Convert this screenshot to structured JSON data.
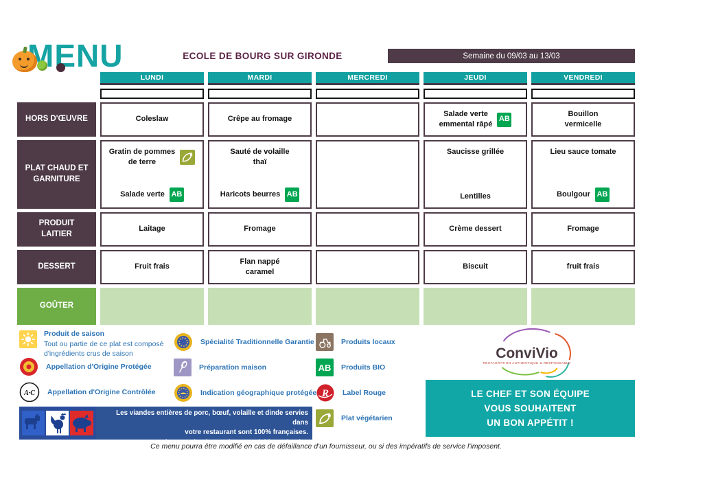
{
  "logo": {
    "text": "MENU"
  },
  "header": {
    "school_title": "ECOLE DE BOURG SUR GIRONDE",
    "week_banner": "Semaine du 09/03 au 13/03"
  },
  "days": [
    "LUNDI",
    "MARDI",
    "MERCREDI",
    "JEUDI",
    "VENDREDI"
  ],
  "sections": [
    {
      "label": "HORS D'ŒUVRE",
      "kind": "normal",
      "cells": [
        {
          "items": [
            {
              "lines": [
                "Coleslaw"
              ],
              "icon": null
            }
          ]
        },
        {
          "items": [
            {
              "lines": [
                "Crêpe au fromage"
              ],
              "icon": null
            }
          ]
        },
        {
          "items": []
        },
        {
          "items": [
            {
              "lines": [
                "Salade verte",
                "emmental râpé"
              ],
              "icon": "bio"
            }
          ]
        },
        {
          "items": [
            {
              "lines": [
                "Bouillon",
                "vermicelle"
              ],
              "icon": null
            }
          ]
        }
      ]
    },
    {
      "label": "PLAT CHAUD ET GARNITURE",
      "kind": "normal",
      "cells": [
        {
          "items": [
            {
              "lines": [
                "Gratin de pommes",
                "de terre"
              ],
              "icon": "veg"
            },
            {
              "lines": [
                "Salade verte"
              ],
              "icon": "bio"
            }
          ]
        },
        {
          "items": [
            {
              "lines": [
                "Sauté de volaille",
                "thaï"
              ],
              "icon": null
            },
            {
              "lines": [
                "Haricots beurres"
              ],
              "icon": "bio"
            }
          ]
        },
        {
          "items": []
        },
        {
          "items": [
            {
              "lines": [
                "Saucisse grillée"
              ],
              "icon": null
            },
            {
              "lines": [
                "Lentilles"
              ],
              "icon": null
            }
          ]
        },
        {
          "items": [
            {
              "lines": [
                "Lieu sauce tomate"
              ],
              "icon": null
            },
            {
              "lines": [
                "Boulgour"
              ],
              "icon": "bio"
            }
          ]
        }
      ]
    },
    {
      "label": "PRODUIT LAITIER",
      "kind": "normal",
      "cells": [
        {
          "items": [
            {
              "lines": [
                "Laitage"
              ],
              "icon": null
            }
          ]
        },
        {
          "items": [
            {
              "lines": [
                "Fromage"
              ],
              "icon": null
            }
          ]
        },
        {
          "items": []
        },
        {
          "items": [
            {
              "lines": [
                "Crème dessert"
              ],
              "icon": null
            }
          ]
        },
        {
          "items": [
            {
              "lines": [
                "Fromage"
              ],
              "icon": null
            }
          ]
        }
      ]
    },
    {
      "label": "DESSERT",
      "kind": "normal",
      "cells": [
        {
          "items": [
            {
              "lines": [
                "Fruit frais"
              ],
              "icon": null
            }
          ]
        },
        {
          "items": [
            {
              "lines": [
                "Flan nappé",
                "caramel"
              ],
              "icon": null
            }
          ]
        },
        {
          "items": []
        },
        {
          "items": [
            {
              "lines": [
                "Biscuit"
              ],
              "icon": null
            }
          ]
        },
        {
          "items": [
            {
              "lines": [
                "fruit frais"
              ],
              "icon": null
            }
          ]
        }
      ]
    },
    {
      "label": "GOÛTER",
      "kind": "gouter",
      "cells": [
        {
          "items": []
        },
        {
          "items": []
        },
        {
          "items": []
        },
        {
          "items": []
        },
        {
          "items": []
        }
      ]
    }
  ],
  "legend": {
    "season": {
      "title": "Produit de saison",
      "desc_line1": "Tout ou partie de ce plat est  composé",
      "desc_line2": "d'ingrédients crus de saison"
    },
    "items_col1": [
      {
        "icon": "aop",
        "label": "Appellation d'Origine Protégée"
      },
      {
        "icon": "aoc",
        "label": "Appellation d'Origine Contrôlée"
      }
    ],
    "items_col2": [
      {
        "icon": "stg",
        "label": "Spécialité Traditionnelle Garantie"
      },
      {
        "icon": "maison",
        "label": "Préparation maison"
      },
      {
        "icon": "igp",
        "label": "Indication géographique protégée"
      }
    ],
    "items_col3": [
      {
        "icon": "local",
        "label": "Produits locaux"
      },
      {
        "icon": "bio",
        "label": "Produits BIO"
      },
      {
        "icon": "rouge",
        "label": "Label Rouge"
      },
      {
        "icon": "veg",
        "label": "Plat végétarien"
      }
    ]
  },
  "meat_notice": {
    "lines": [
      "Les viandes entières de porc, bœuf, volaille et dinde servies dans",
      "votre restaurant sont 100% françaises.",
      "(Autres viandes et abats : variables selon les approvisionnements)"
    ]
  },
  "convivio": {
    "name": "ConviVio",
    "tagline": "RESTAURATION AUTHENTIQUE & RESPONSABLE"
  },
  "chef_message": {
    "lines": [
      "LE CHEF ET SON ÉQUIPE",
      "VOUS SOUHAITENT",
      "UN BON APPÉTIT !"
    ]
  },
  "footer_note": "Ce menu pourra être modifié en cas de défaillance d'un fournisseur, ou si des impératifs de service l'imposent.",
  "colors": {
    "teal": "#12a0a0",
    "maroon": "#4e3b47",
    "title_plum": "#5b2144",
    "gouter_green": "#6fae47",
    "gouter_cell_green": "#c7dfb5",
    "legend_blue": "#2e75b6",
    "notice_blue": "#2e5496",
    "bio_green": "#00a651",
    "veg_olive": "#9aa838",
    "label_rouge_red": "#d0202a",
    "season_yellow": "#ffd34d",
    "chef_box_teal": "#12a7a7"
  }
}
